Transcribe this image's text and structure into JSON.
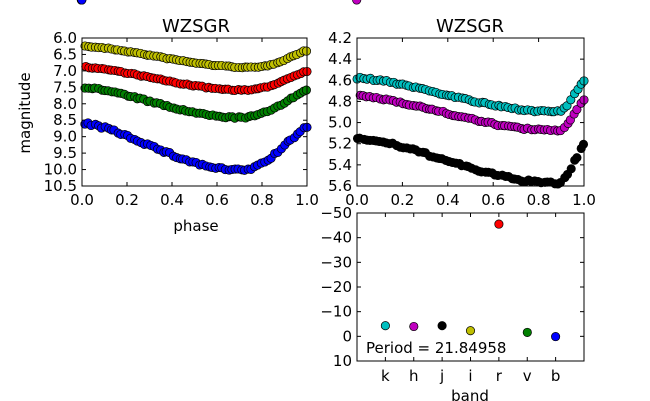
{
  "colors": {
    "k": "#000000",
    "c": "#00bfbf",
    "m": "#bf00bf",
    "y": "#bfbf00",
    "r": "#ff0000",
    "g": "#008000",
    "b": "#0000ff"
  },
  "chart_data": [
    {
      "id": "left",
      "type": "scatter",
      "title": "WZSGR",
      "xlabel": "phase",
      "ylabel": "magnitude",
      "xlim": [
        0.0,
        1.0
      ],
      "ylim": [
        10.5,
        6.0
      ],
      "inverted_y": true,
      "xticks": [
        "0.0",
        "0.2",
        "0.4",
        "0.6",
        "0.8",
        "1.0"
      ],
      "yticks": [
        "6.0",
        "6.5",
        "7.0",
        "7.5",
        "8.0",
        "8.5",
        "9.0",
        "9.5",
        "10.0",
        "10.5"
      ],
      "series": [
        {
          "name": "i",
          "color": "#bfbf00",
          "start": 6.25,
          "end": 6.38,
          "amp": 0.55,
          "min_phase": 0.75
        },
        {
          "name": "r",
          "color": "#ff0000",
          "start": 6.88,
          "end": 7.0,
          "amp": 0.62,
          "min_phase": 0.72
        },
        {
          "name": "v",
          "color": "#008000",
          "start": 7.5,
          "end": 7.6,
          "amp": 0.85,
          "min_phase": 0.7
        },
        {
          "name": "b",
          "color": "#0000ff",
          "start": 8.6,
          "end": 8.7,
          "amp": 1.35,
          "min_phase": 0.7
        }
      ]
    },
    {
      "id": "right",
      "type": "scatter",
      "title": "WZSGR",
      "xlabel": "",
      "ylabel": "",
      "xlim": [
        0.0,
        1.0
      ],
      "ylim": [
        5.6,
        4.2
      ],
      "inverted_y": true,
      "xticks": [
        "0.0",
        "0.2",
        "0.4",
        "0.6",
        "0.8",
        "1.0"
      ],
      "yticks": [
        "4.2",
        "4.4",
        "4.6",
        "4.8",
        "5.0",
        "5.2",
        "5.4",
        "5.6"
      ],
      "series": [
        {
          "name": "h",
          "color": "#00bfbf",
          "start": 4.58,
          "end": 4.6,
          "amp": 0.3,
          "min_phase": 0.88
        },
        {
          "name": "j",
          "color": "#bf00bf",
          "start": 4.75,
          "end": 4.78,
          "amp": 0.3,
          "min_phase": 0.88
        },
        {
          "name": "k",
          "color": "#000000",
          "start": 5.15,
          "end": 5.2,
          "amp": 0.38,
          "min_phase": 0.88
        }
      ]
    },
    {
      "id": "bottom",
      "type": "scatter",
      "title": "",
      "xlabel": "band",
      "ylabel": "",
      "ylim": [
        10,
        -50
      ],
      "inverted_y": true,
      "yticks": [
        "−50",
        "−40",
        "−30",
        "−20",
        "−10",
        "0",
        "10"
      ],
      "yticks_values": [
        -50,
        -40,
        -30,
        -20,
        -10,
        0,
        10
      ],
      "categories": [
        "k",
        "h",
        "j",
        "i",
        "r",
        "v",
        "b"
      ],
      "values": [
        -4.3,
        -4.0,
        -4.3,
        -2.3,
        -45.5,
        -1.6,
        0.1
      ],
      "point_colors": [
        "#00bfbf",
        "#bf00bf",
        "#000000",
        "#bfbf00",
        "#ff0000",
        "#008000",
        "#0000ff"
      ],
      "annotation": "Period = 21.84958"
    }
  ]
}
